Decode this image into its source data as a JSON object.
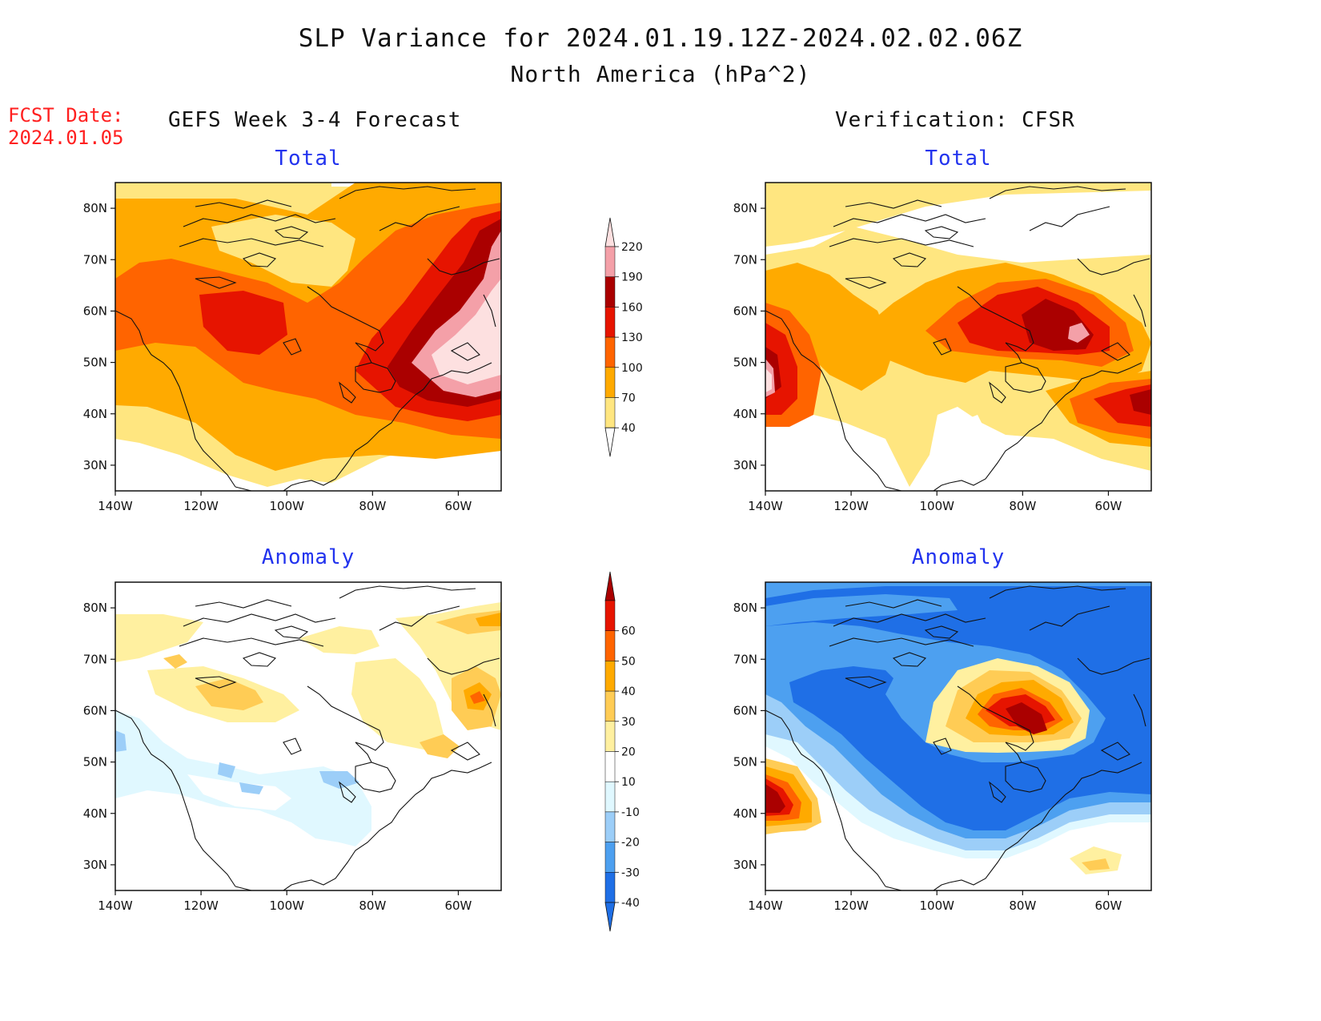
{
  "title": "SLP Variance for 2024.01.19.12Z-2024.02.02.06Z",
  "subtitle": "North America (hPa^2)",
  "forecast_date": {
    "label": "FCST Date:",
    "value": "2024.01.05"
  },
  "columns": {
    "left": "GEFS Week 3-4 Forecast",
    "right": "Verification: CFSR"
  },
  "panels": {
    "fc_total": {
      "title": "Total"
    },
    "vf_total": {
      "title": "Total"
    },
    "fc_anom": {
      "title": "Anomaly"
    },
    "vf_anom": {
      "title": "Anomaly"
    }
  },
  "map": {
    "lon_range": [
      -140,
      -50
    ],
    "lat_range": [
      25,
      85
    ],
    "lon_ticks": [
      -140,
      -120,
      -100,
      -80,
      -60
    ],
    "lon_tick_labels": [
      "140W",
      "120W",
      "100W",
      "80W",
      "60W"
    ],
    "lat_ticks": [
      30,
      40,
      50,
      60,
      70,
      80
    ],
    "lat_tick_labels": [
      "30N",
      "40N",
      "50N",
      "60N",
      "70N",
      "80N"
    ]
  },
  "colorbars": {
    "total": {
      "levels": [
        "40",
        "70",
        "100",
        "130",
        "160",
        "190",
        "220"
      ],
      "colors": [
        "#ffffff",
        "#ffe680",
        "#ffaa00",
        "#ff6400",
        "#e61400",
        "#aa0000",
        "#f4a0a8",
        "#fde0e0"
      ]
    },
    "anomaly": {
      "levels": [
        "-40",
        "-30",
        "-20",
        "-10",
        "10",
        "20",
        "30",
        "40",
        "50",
        "60"
      ],
      "colors": [
        "#1f6fe6",
        "#1f6fe6",
        "#4da0f0",
        "#9ccef8",
        "#e0f8ff",
        "#ffffff",
        "#fff0a0",
        "#ffcc55",
        "#ffaa00",
        "#ff6400",
        "#e61400",
        "#aa0000"
      ]
    }
  }
}
